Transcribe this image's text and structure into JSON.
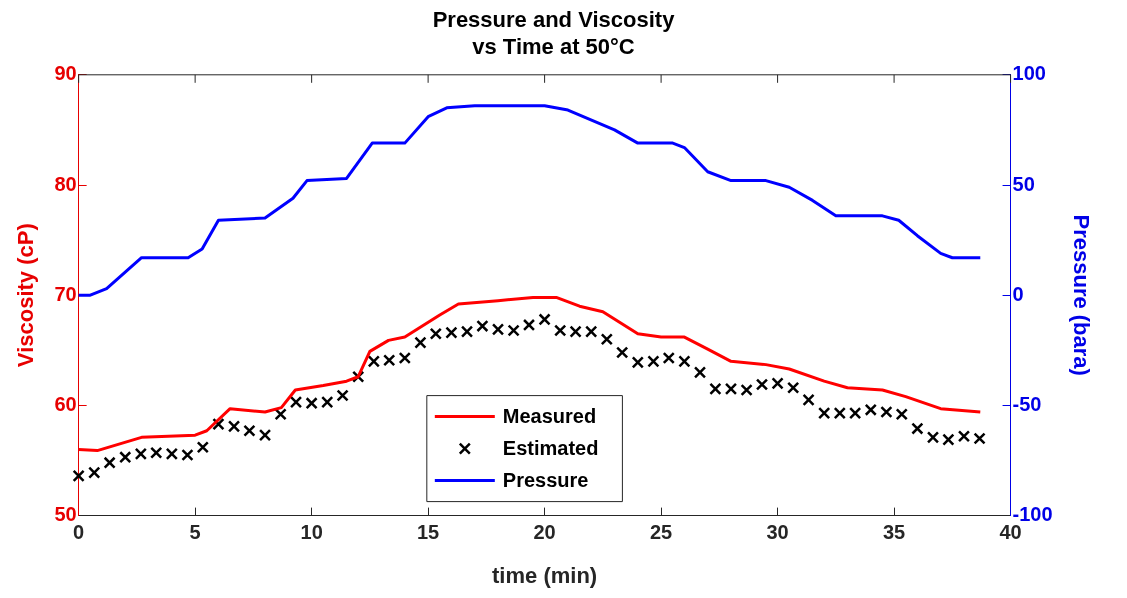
{
  "chart_data": {
    "type": "line",
    "title": "Pressure and Viscosity\nvs Time at 50°C",
    "xlabel": "time (min)",
    "ylabel": "Viscosity (cP)",
    "y2label": "Pressure (bara)",
    "xlim": [
      0,
      40
    ],
    "xticks": [
      0,
      5,
      10,
      15,
      20,
      25,
      30,
      35,
      40
    ],
    "ylim": [
      50,
      90
    ],
    "yticks": [
      50,
      60,
      70,
      80,
      90
    ],
    "y2lim": [
      -100,
      100
    ],
    "y2ticks": [
      -100,
      -50,
      0,
      50,
      100
    ],
    "grid": false,
    "legend": "bottom",
    "series": [
      {
        "name": "Measured",
        "color": "#ff0000",
        "marker": "none",
        "x": [
          0,
          0.8,
          2.7,
          5,
          5.5,
          6.5,
          8,
          8.7,
          9.3,
          10.5,
          11.5,
          12,
          12.5,
          13.3,
          14,
          15.5,
          16.3,
          18,
          19.5,
          20.5,
          21.5,
          22.5,
          24,
          25,
          26,
          27,
          28,
          29.5,
          30.5,
          32,
          33,
          34.5,
          35.5,
          37,
          38.7
        ],
        "values": [
          56.0,
          55.9,
          57.1,
          57.3,
          57.7,
          59.7,
          59.4,
          59.8,
          61.4,
          61.8,
          62.2,
          62.6,
          64.9,
          65.9,
          66.2,
          68.2,
          69.2,
          69.5,
          69.8,
          69.8,
          69.0,
          68.5,
          66.5,
          66.2,
          66.2,
          65.1,
          64.0,
          63.7,
          63.3,
          62.2,
          61.6,
          61.4,
          60.8,
          59.7,
          59.4
        ]
      },
      {
        "name": "Estimated",
        "type": "scatter",
        "color": "#000000",
        "marker": "cross",
        "x": [
          0,
          0.67,
          1.33,
          2,
          2.67,
          3.33,
          4,
          4.67,
          5.33,
          6,
          6.67,
          7.33,
          8,
          8.67,
          9.33,
          10,
          10.67,
          11.33,
          12,
          12.67,
          13.33,
          14,
          14.67,
          15.33,
          16,
          16.67,
          17.33,
          18,
          18.67,
          19.33,
          20,
          20.67,
          21.33,
          22,
          22.67,
          23.33,
          24,
          24.67,
          25.33,
          26,
          26.67,
          27.33,
          28,
          28.67,
          29.33,
          30,
          30.67,
          31.33,
          32,
          32.67,
          33.33,
          34,
          34.67,
          35.33,
          36,
          36.67,
          37.33,
          38,
          38.67
        ],
        "values": [
          53.6,
          53.9,
          54.8,
          55.3,
          55.6,
          55.7,
          55.6,
          55.5,
          56.2,
          58.3,
          58.1,
          57.7,
          57.3,
          59.2,
          60.3,
          60.2,
          60.3,
          60.9,
          62.6,
          64.0,
          64.1,
          64.3,
          65.7,
          66.5,
          66.6,
          66.7,
          67.2,
          66.9,
          66.8,
          67.3,
          67.8,
          66.8,
          66.7,
          66.7,
          66.0,
          64.8,
          63.9,
          64.0,
          64.3,
          64.0,
          63.0,
          61.5,
          61.5,
          61.4,
          61.9,
          62.0,
          61.6,
          60.5,
          59.3,
          59.3,
          59.3,
          59.6,
          59.4,
          59.2,
          57.9,
          57.1,
          56.9,
          57.2,
          57.0
        ]
      },
      {
        "name": "Pressure",
        "axis": "y2",
        "color": "#0000ff",
        "marker": "none",
        "x": [
          0,
          0.5,
          1.2,
          2.7,
          4.7,
          5.3,
          6,
          8,
          9.2,
          9.8,
          11.5,
          12.6,
          14,
          15,
          15.8,
          17,
          20,
          21,
          23,
          24,
          25.5,
          26,
          27,
          28,
          29.5,
          30.5,
          31.5,
          32.5,
          34.5,
          35.2,
          36,
          37,
          37.5,
          38.7
        ],
        "values": [
          0,
          0,
          3,
          17,
          17,
          21,
          34,
          35,
          44,
          52,
          53,
          69,
          69,
          81,
          85,
          86,
          86,
          84,
          75,
          69,
          69,
          67,
          56,
          52,
          52,
          49,
          43,
          36,
          36,
          34,
          27,
          19,
          17,
          17
        ]
      }
    ]
  }
}
